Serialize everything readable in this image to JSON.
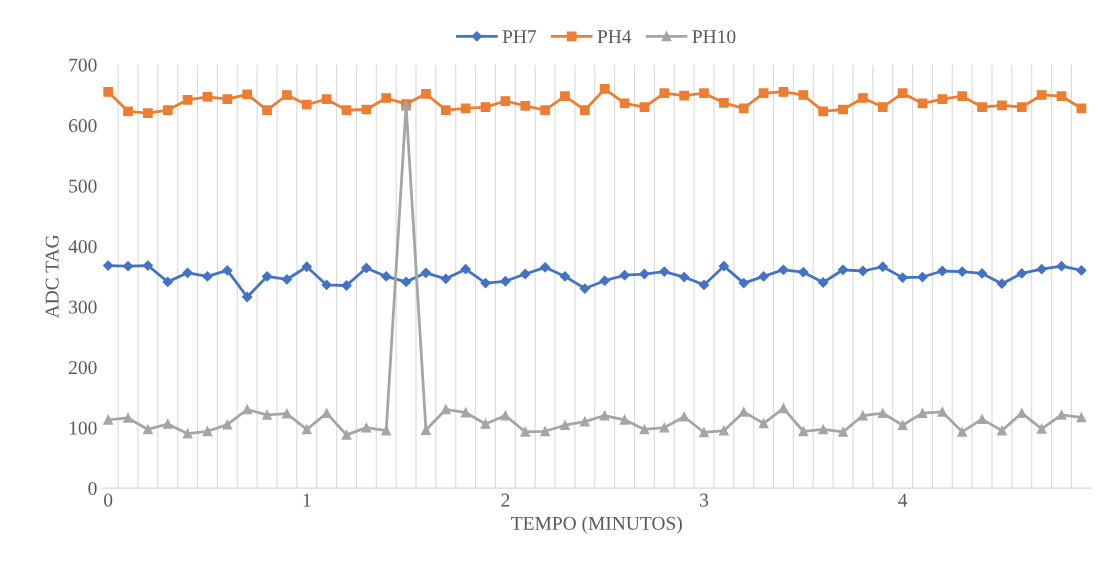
{
  "chart_data": {
    "type": "line",
    "xlabel": "TEMPO (MINUTOS)",
    "ylabel": "ADC TAG",
    "x": [
      0,
      0.1,
      0.2,
      0.3,
      0.4,
      0.5,
      0.6,
      0.7,
      0.8,
      0.9,
      1,
      1.1,
      1.2,
      1.3,
      1.4,
      1.5,
      1.6,
      1.7,
      1.8,
      1.9,
      2,
      2.1,
      2.2,
      2.3,
      2.4,
      2.5,
      2.6,
      2.7,
      2.8,
      2.9,
      3,
      3.1,
      3.2,
      3.3,
      3.4,
      3.5,
      3.6,
      3.7,
      3.8,
      3.9,
      4,
      4.1,
      4.2,
      4.3,
      4.4,
      4.5,
      4.6,
      4.7,
      4.8,
      4.9
    ],
    "series": [
      {
        "name": "PH7",
        "color": "#4472c4",
        "marker": "diamond",
        "values": [
          368,
          367,
          368,
          341,
          356,
          350,
          360,
          316,
          350,
          345,
          366,
          336,
          335,
          364,
          350,
          341,
          356,
          346,
          362,
          339,
          342,
          354,
          365,
          350,
          330,
          343,
          352,
          354,
          358,
          349,
          336,
          367,
          339,
          350,
          361,
          357,
          340,
          361,
          359,
          366,
          348,
          349,
          359,
          358,
          355,
          338,
          355,
          362,
          367,
          360
        ]
      },
      {
        "name": "PH4",
        "color": "#ed7d31",
        "marker": "square",
        "values": [
          655,
          623,
          620,
          625,
          642,
          647,
          643,
          651,
          625,
          650,
          634,
          643,
          625,
          626,
          645,
          635,
          652,
          625,
          628,
          630,
          640,
          632,
          625,
          648,
          625,
          660,
          636,
          630,
          653,
          649,
          653,
          637,
          628,
          653,
          655,
          650,
          623,
          626,
          645,
          630,
          653,
          636,
          643,
          648,
          630,
          633,
          630,
          650,
          648,
          628
        ]
      },
      {
        "name": "PH10",
        "color": "#a5a5a5",
        "marker": "triangle",
        "values": [
          113,
          116,
          97,
          106,
          90,
          94,
          105,
          130,
          121,
          123,
          97,
          124,
          88,
          100,
          95,
          632,
          96,
          130,
          125,
          106,
          120,
          93,
          94,
          104,
          110,
          120,
          113,
          97,
          100,
          118,
          92,
          95,
          126,
          107,
          132,
          94,
          97,
          93,
          120,
          124,
          104,
          124,
          126,
          93,
          114,
          95,
          124,
          98,
          121,
          117
        ]
      }
    ],
    "xlim": [
      -0.03,
      4.95
    ],
    "xticks": [
      0,
      1,
      2,
      3,
      4
    ],
    "ylim": [
      0,
      700
    ],
    "yticks": [
      0,
      100,
      200,
      300,
      400,
      500,
      600,
      700
    ],
    "grid": "x",
    "legend": "top"
  }
}
